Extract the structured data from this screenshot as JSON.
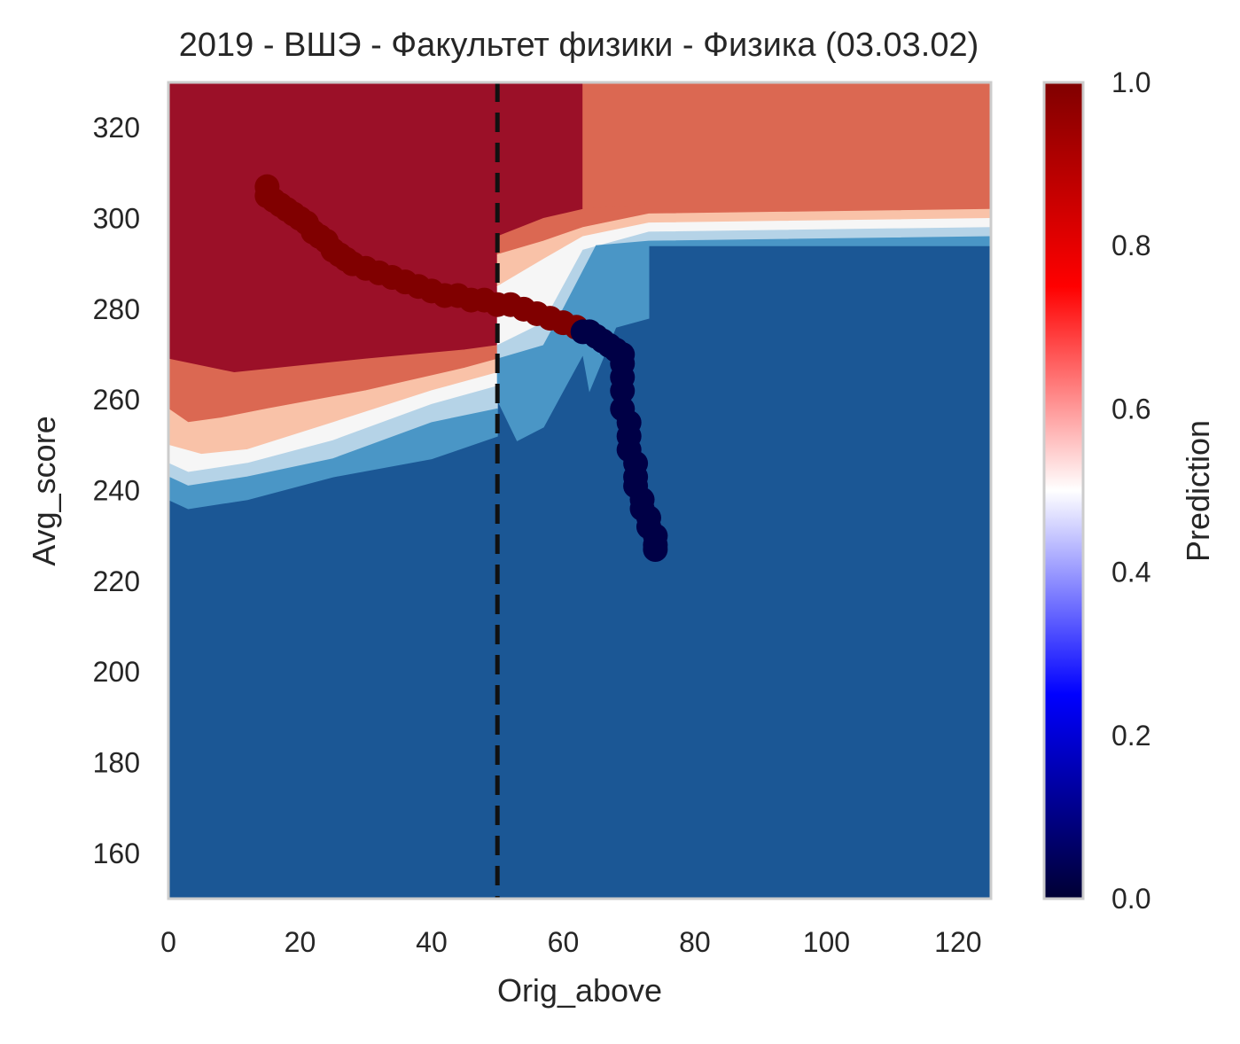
{
  "chart_data": {
    "type": "heatmap",
    "title": "2019 - ВШЭ - Факультет физики - Физика (03.03.02)",
    "xlabel": "Orig_above",
    "ylabel": "Avg_score",
    "xlim": [
      0,
      125
    ],
    "ylim": [
      150,
      330
    ],
    "xticks": [
      "0",
      "20",
      "40",
      "60",
      "80",
      "100",
      "120"
    ],
    "yticks": [
      "160",
      "180",
      "200",
      "220",
      "240",
      "260",
      "280",
      "300",
      "320"
    ],
    "grid": false,
    "colorbar": {
      "label": "Prediction",
      "range": [
        0.0,
        1.0
      ],
      "ticks": [
        "0.0",
        "0.2",
        "0.4",
        "0.6",
        "0.8",
        "1.0"
      ],
      "colormap": [
        "#000033",
        "#0000ff",
        "#ffffff",
        "#ff0000",
        "#800000"
      ]
    },
    "region_colors": {
      "p_0_1": "#1b5795",
      "p_1_2": "#4a96c6",
      "p_2_3": "#b5d3e7",
      "p_3_4": "#f6f6f6",
      "p_4_5": "#f9c2a8",
      "p_5_6": "#db6852",
      "p_6_7": "#9b1028"
    },
    "contour_regions": [
      {
        "name": "top-left-high",
        "prediction": 0.95,
        "points": [
          [
            0,
            330
          ],
          [
            63,
            330
          ],
          [
            63,
            302
          ],
          [
            57,
            300
          ],
          [
            50,
            296
          ],
          [
            50,
            285
          ],
          [
            50,
            272
          ],
          [
            45,
            271
          ],
          [
            30,
            269
          ],
          [
            10,
            266
          ],
          [
            0,
            269
          ]
        ]
      },
      {
        "name": "top-right-upper",
        "prediction": 0.78,
        "points": [
          [
            63,
            330
          ],
          [
            125,
            330
          ],
          [
            125,
            303
          ],
          [
            73,
            303
          ],
          [
            63,
            302
          ]
        ]
      },
      {
        "name": "band-0.78-left",
        "prediction": 0.78,
        "points": [
          [
            0,
            269
          ],
          [
            10,
            266
          ],
          [
            30,
            269
          ],
          [
            45,
            271
          ],
          [
            50,
            272
          ],
          [
            50,
            269
          ],
          [
            45,
            267
          ],
          [
            30,
            262
          ],
          [
            15,
            258
          ],
          [
            8,
            256
          ],
          [
            3,
            255
          ],
          [
            0,
            258
          ]
        ]
      },
      {
        "name": "band-0.62-left",
        "prediction": 0.62,
        "points": [
          [
            0,
            258
          ],
          [
            3,
            255
          ],
          [
            8,
            256
          ],
          [
            15,
            258
          ],
          [
            30,
            262
          ],
          [
            45,
            267
          ],
          [
            50,
            269
          ],
          [
            50,
            266
          ],
          [
            40,
            262
          ],
          [
            25,
            255
          ],
          [
            12,
            249
          ],
          [
            5,
            248
          ],
          [
            0,
            250
          ]
        ]
      },
      {
        "name": "band-0.5-left",
        "prediction": 0.5,
        "points": [
          [
            0,
            250
          ],
          [
            5,
            248
          ],
          [
            12,
            249
          ],
          [
            25,
            255
          ],
          [
            40,
            262
          ],
          [
            50,
            266
          ],
          [
            50,
            263
          ],
          [
            40,
            259
          ],
          [
            25,
            251
          ],
          [
            12,
            246
          ],
          [
            3,
            244
          ],
          [
            0,
            246
          ]
        ]
      },
      {
        "name": "band-0.38-left",
        "prediction": 0.38,
        "points": [
          [
            0,
            246
          ],
          [
            3,
            244
          ],
          [
            12,
            246
          ],
          [
            25,
            251
          ],
          [
            40,
            259
          ],
          [
            50,
            263
          ],
          [
            50,
            258
          ],
          [
            40,
            255
          ],
          [
            25,
            247
          ],
          [
            12,
            243
          ],
          [
            3,
            241
          ],
          [
            0,
            243
          ]
        ]
      },
      {
        "name": "band-0.22-left",
        "prediction": 0.22,
        "points": [
          [
            0,
            243
          ],
          [
            3,
            241
          ],
          [
            12,
            243
          ],
          [
            25,
            247
          ],
          [
            40,
            255
          ],
          [
            50,
            258
          ],
          [
            50,
            252
          ],
          [
            40,
            247
          ],
          [
            25,
            243
          ],
          [
            12,
            238
          ],
          [
            3,
            236
          ],
          [
            0,
            238
          ]
        ]
      },
      {
        "name": "band-0.78-mid",
        "prediction": 0.78,
        "points": [
          [
            50,
            296
          ],
          [
            57,
            300
          ],
          [
            63,
            302
          ],
          [
            73,
            303
          ],
          [
            125,
            303
          ],
          [
            125,
            302
          ],
          [
            73,
            301
          ],
          [
            63,
            298
          ],
          [
            57,
            295
          ],
          [
            50,
            292
          ]
        ]
      },
      {
        "name": "band-0.62-mid",
        "prediction": 0.62,
        "points": [
          [
            50,
            292
          ],
          [
            57,
            295
          ],
          [
            63,
            298
          ],
          [
            73,
            301
          ],
          [
            125,
            302
          ],
          [
            125,
            300
          ],
          [
            73,
            299
          ],
          [
            63,
            296
          ],
          [
            57,
            291
          ],
          [
            50,
            285
          ]
        ]
      },
      {
        "name": "band-0.5-mid",
        "prediction": 0.5,
        "points": [
          [
            50,
            285
          ],
          [
            57,
            291
          ],
          [
            63,
            296
          ],
          [
            73,
            299
          ],
          [
            125,
            300
          ],
          [
            125,
            298
          ],
          [
            73,
            297
          ],
          [
            63,
            293
          ],
          [
            60,
            285
          ],
          [
            57,
            277
          ],
          [
            50,
            272
          ]
        ]
      },
      {
        "name": "band-0.38-mid",
        "prediction": 0.38,
        "points": [
          [
            50,
            272
          ],
          [
            57,
            277
          ],
          [
            60,
            285
          ],
          [
            63,
            293
          ],
          [
            73,
            297
          ],
          [
            125,
            298
          ],
          [
            125,
            296
          ],
          [
            73,
            295
          ],
          [
            65,
            294
          ],
          [
            60,
            280
          ],
          [
            57,
            272
          ],
          [
            50,
            269
          ]
        ]
      },
      {
        "name": "band-0.22-mid",
        "prediction": 0.22,
        "points": [
          [
            50,
            269
          ],
          [
            57,
            272
          ],
          [
            60,
            280
          ],
          [
            65,
            294
          ],
          [
            73,
            295
          ],
          [
            125,
            296
          ],
          [
            125,
            294
          ],
          [
            73,
            294
          ],
          [
            73,
            278
          ],
          [
            68,
            276
          ],
          [
            64,
            262
          ],
          [
            63,
            270
          ],
          [
            60,
            262
          ],
          [
            57,
            254
          ],
          [
            53,
            251
          ],
          [
            50,
            260
          ]
        ]
      }
    ],
    "reference_line": {
      "x": 50,
      "style": "dashed",
      "color": "#111111"
    },
    "series": [
      {
        "color": "#800000",
        "prediction": 1.0,
        "x": [
          15,
          15,
          16,
          17,
          18,
          19,
          20,
          21,
          22,
          23,
          24,
          25,
          26,
          27,
          28,
          30,
          32,
          34,
          36,
          38,
          40,
          42,
          44,
          46,
          48,
          50,
          52,
          54,
          56,
          58,
          60,
          62
        ],
        "y": [
          307,
          305,
          304,
          303,
          302,
          301,
          300,
          299,
          297,
          296,
          295,
          293,
          292,
          291,
          290,
          289,
          288,
          287,
          286,
          285,
          284,
          283,
          283,
          282,
          282,
          281,
          281,
          280,
          279,
          278,
          277,
          276
        ]
      },
      {
        "color": "#000046",
        "prediction": 0.0,
        "x": [
          63,
          64,
          65,
          66,
          67,
          68,
          69,
          69,
          69,
          69,
          69,
          70,
          70,
          70,
          71,
          71,
          71,
          72,
          72,
          73,
          73,
          74,
          74,
          74
        ],
        "y": [
          275,
          275,
          274,
          273,
          272,
          271,
          270,
          268,
          265,
          262,
          258,
          255,
          252,
          249,
          246,
          243,
          241,
          238,
          236,
          234,
          232,
          230,
          228,
          227
        ]
      }
    ]
  }
}
